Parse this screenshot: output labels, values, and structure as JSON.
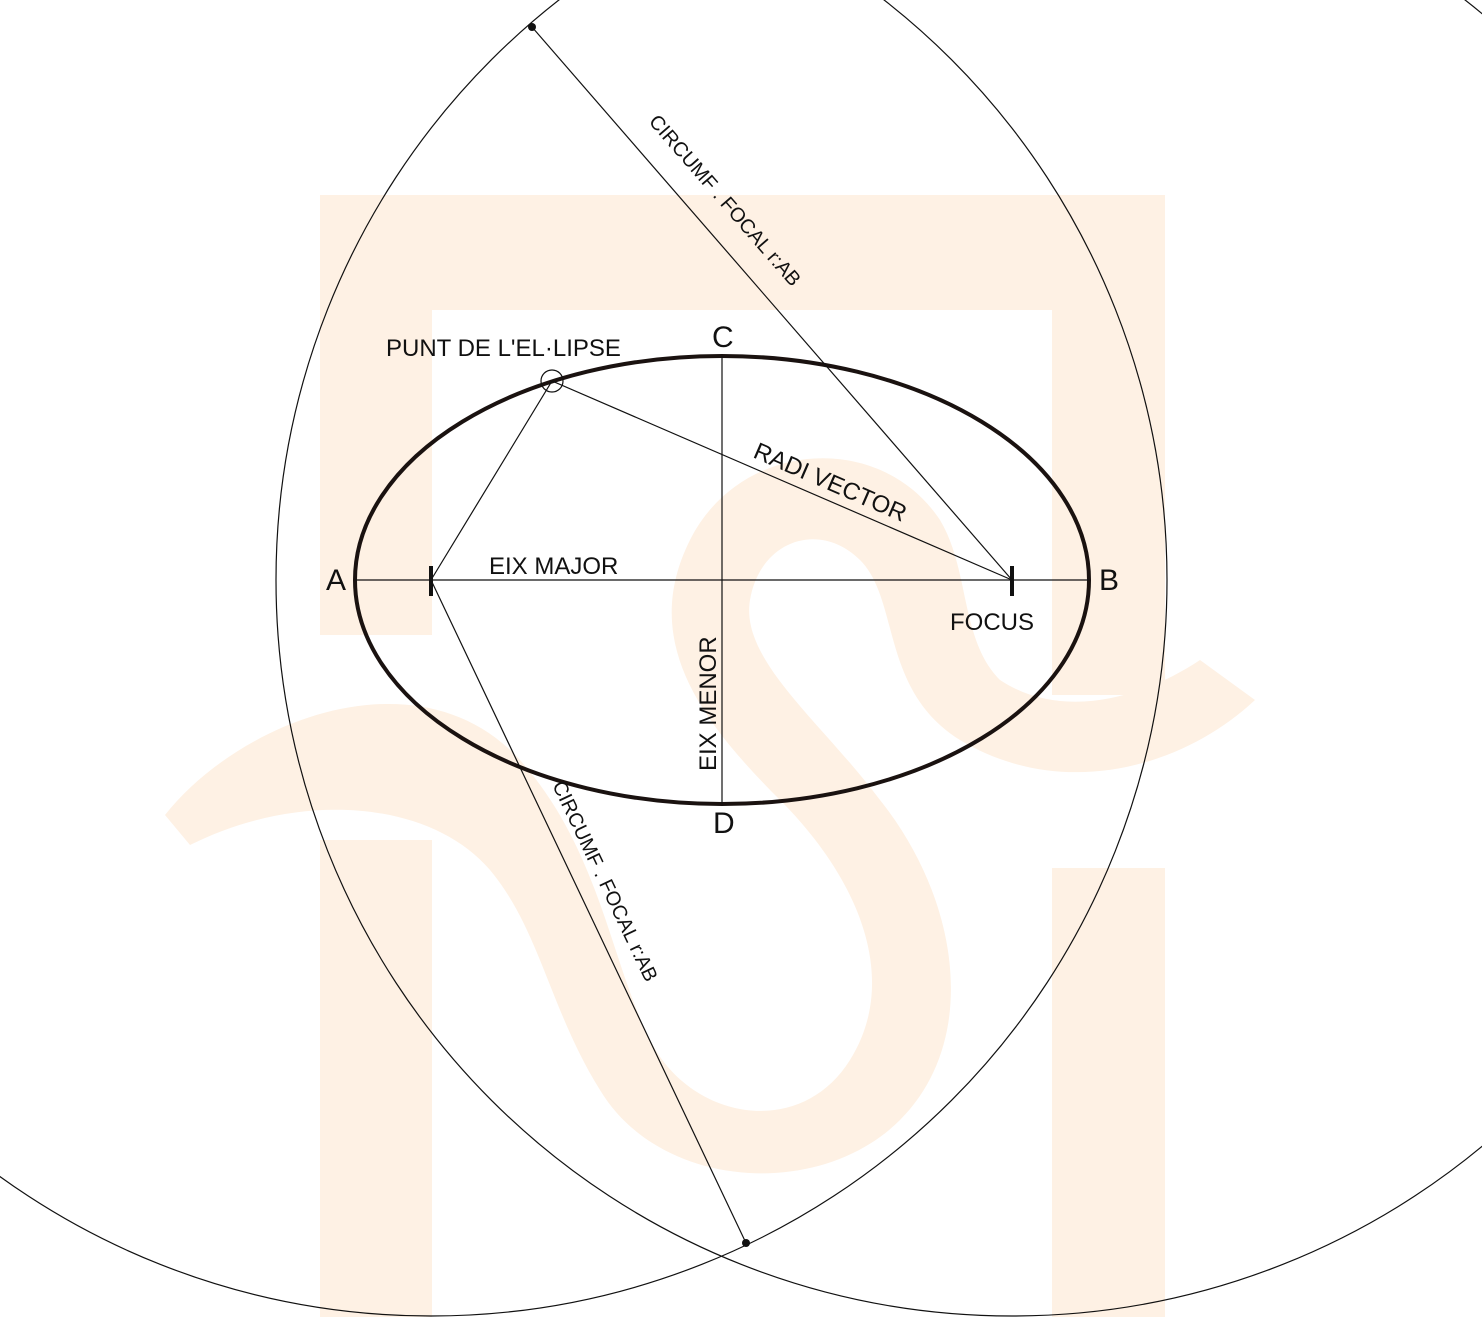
{
  "diagram": {
    "points": {
      "a": "A",
      "b": "B",
      "c": "C",
      "d": "D"
    },
    "labels": {
      "ellipse_point": "PUNT DE L'EL·LIPSE",
      "radius_vector": "RADI VECTOR",
      "major_axis": "EIX MAJOR",
      "minor_axis": "EIX MENOR",
      "focus": "FOCUS",
      "focal_circle_top": "CIRCUMF .  FOCAL   r:AB",
      "focal_circle_bottom": "CIRCUMF .  FOCAL   r:AB"
    },
    "colors": {
      "ink": "#111111",
      "ellipse": "#1a1210",
      "watermark": "#fef1e4"
    },
    "watermark_icon": "school-logo-watermark"
  }
}
